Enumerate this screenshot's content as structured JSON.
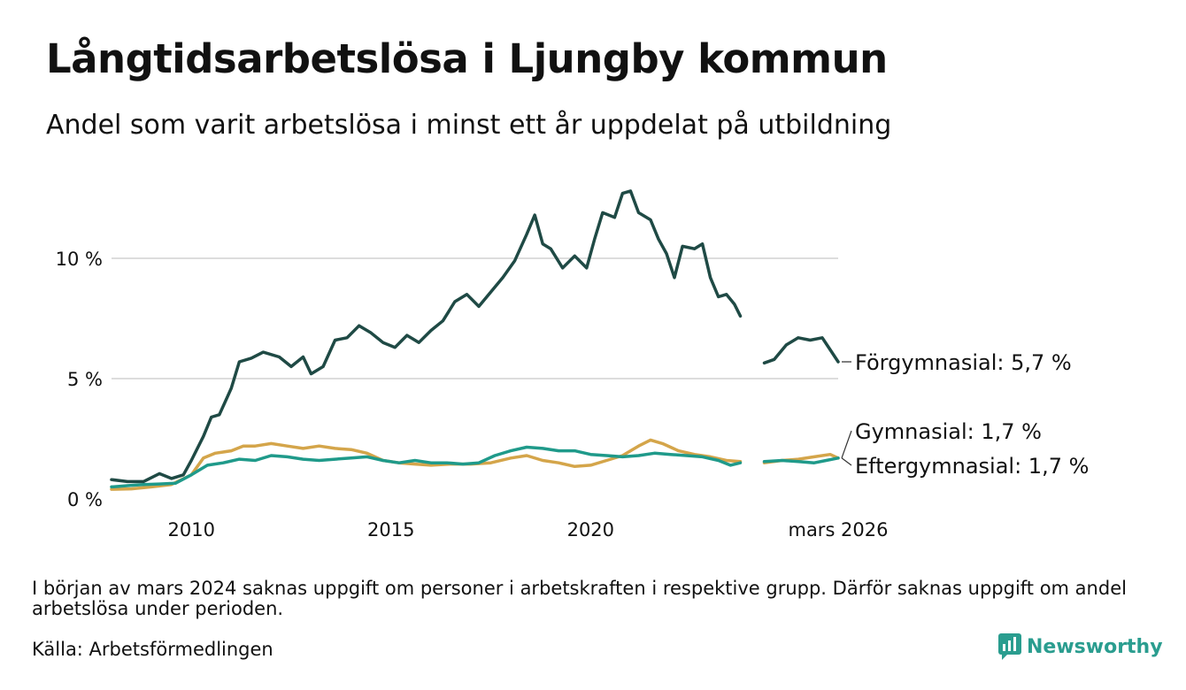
{
  "title": "Långtidsarbetslösa i Ljungby kommun",
  "subtitle": "Andel som varit arbetslösa i minst ett år uppdelat på utbildning",
  "note": "I början av mars 2024 saknas uppgift om personer i arbetskraften i respektive grupp. Därför saknas uppgift om andel arbetslösa under perioden.",
  "source": "Källa: Arbetsförmedlingen",
  "brand": {
    "name": "Newsworthy",
    "icon": "newsworthy-logo-icon"
  },
  "colors": {
    "forgymnasial": "#1f4a45",
    "gymnasial": "#d4a54a",
    "eftergymnasial": "#1f9a8a",
    "grid": "#dddddd",
    "brand": "#2a9d8f"
  },
  "chart_data": {
    "type": "line",
    "y_ticks": [
      0,
      5,
      10
    ],
    "y_tick_labels": [
      "0 %",
      "5 %",
      "10 %"
    ],
    "ylim": [
      0,
      13.2
    ],
    "x_range": [
      2008.0,
      2026.2
    ],
    "x_ticks": [
      2010,
      2015,
      2020,
      2026.2
    ],
    "x_tick_labels": [
      "2010",
      "2015",
      "2020",
      "mars 2026"
    ],
    "gap": [
      2023.75,
      2024.35
    ],
    "series": [
      {
        "key": "forgymnasial",
        "name": "Förgymnasial",
        "end_label": "Förgymnasial: 5,7 %",
        "points": [
          [
            2008.0,
            0.8
          ],
          [
            2008.4,
            0.72
          ],
          [
            2008.8,
            0.72
          ],
          [
            2009.2,
            1.05
          ],
          [
            2009.5,
            0.85
          ],
          [
            2009.8,
            1.0
          ],
          [
            2010.0,
            1.6
          ],
          [
            2010.3,
            2.6
          ],
          [
            2010.5,
            3.4
          ],
          [
            2010.7,
            3.5
          ],
          [
            2011.0,
            4.6
          ],
          [
            2011.2,
            5.7
          ],
          [
            2011.5,
            5.85
          ],
          [
            2011.8,
            6.1
          ],
          [
            2012.2,
            5.9
          ],
          [
            2012.5,
            5.5
          ],
          [
            2012.8,
            5.9
          ],
          [
            2013.0,
            5.2
          ],
          [
            2013.3,
            5.5
          ],
          [
            2013.6,
            6.6
          ],
          [
            2013.9,
            6.7
          ],
          [
            2014.2,
            7.2
          ],
          [
            2014.5,
            6.9
          ],
          [
            2014.8,
            6.5
          ],
          [
            2015.1,
            6.3
          ],
          [
            2015.4,
            6.8
          ],
          [
            2015.7,
            6.5
          ],
          [
            2016.0,
            7.0
          ],
          [
            2016.3,
            7.4
          ],
          [
            2016.6,
            8.2
          ],
          [
            2016.9,
            8.5
          ],
          [
            2017.2,
            8.0
          ],
          [
            2017.5,
            8.6
          ],
          [
            2017.8,
            9.2
          ],
          [
            2018.1,
            9.9
          ],
          [
            2018.4,
            11.0
          ],
          [
            2018.6,
            11.8
          ],
          [
            2018.8,
            10.6
          ],
          [
            2019.0,
            10.4
          ],
          [
            2019.3,
            9.6
          ],
          [
            2019.6,
            10.1
          ],
          [
            2019.9,
            9.6
          ],
          [
            2020.1,
            10.8
          ],
          [
            2020.3,
            11.9
          ],
          [
            2020.6,
            11.7
          ],
          [
            2020.8,
            12.7
          ],
          [
            2021.0,
            12.8
          ],
          [
            2021.2,
            11.9
          ],
          [
            2021.5,
            11.6
          ],
          [
            2021.7,
            10.8
          ],
          [
            2021.9,
            10.2
          ],
          [
            2022.1,
            9.2
          ],
          [
            2022.3,
            10.5
          ],
          [
            2022.6,
            10.4
          ],
          [
            2022.8,
            10.6
          ],
          [
            2023.0,
            9.2
          ],
          [
            2023.2,
            8.4
          ],
          [
            2023.4,
            8.5
          ],
          [
            2023.6,
            8.1
          ],
          [
            2023.75,
            7.6
          ],
          [
            2024.35,
            5.65
          ],
          [
            2024.6,
            5.8
          ],
          [
            2024.9,
            6.4
          ],
          [
            2025.2,
            6.7
          ],
          [
            2025.5,
            6.6
          ],
          [
            2025.8,
            6.7
          ],
          [
            2026.0,
            6.2
          ],
          [
            2026.2,
            5.7
          ]
        ]
      },
      {
        "key": "gymnasial",
        "name": "Gymnasial",
        "end_label": "Gymnasial: 1,7 %",
        "points": [
          [
            2008.0,
            0.4
          ],
          [
            2008.5,
            0.42
          ],
          [
            2009.0,
            0.5
          ],
          [
            2009.5,
            0.6
          ],
          [
            2010.0,
            1.0
          ],
          [
            2010.3,
            1.7
          ],
          [
            2010.6,
            1.9
          ],
          [
            2011.0,
            2.0
          ],
          [
            2011.3,
            2.2
          ],
          [
            2011.6,
            2.2
          ],
          [
            2012.0,
            2.3
          ],
          [
            2012.4,
            2.2
          ],
          [
            2012.8,
            2.1
          ],
          [
            2013.2,
            2.2
          ],
          [
            2013.6,
            2.1
          ],
          [
            2014.0,
            2.05
          ],
          [
            2014.4,
            1.9
          ],
          [
            2014.8,
            1.6
          ],
          [
            2015.2,
            1.5
          ],
          [
            2015.6,
            1.45
          ],
          [
            2016.0,
            1.4
          ],
          [
            2016.5,
            1.45
          ],
          [
            2017.0,
            1.45
          ],
          [
            2017.5,
            1.5
          ],
          [
            2018.0,
            1.7
          ],
          [
            2018.4,
            1.8
          ],
          [
            2018.8,
            1.6
          ],
          [
            2019.2,
            1.5
          ],
          [
            2019.6,
            1.35
          ],
          [
            2020.0,
            1.4
          ],
          [
            2020.4,
            1.6
          ],
          [
            2020.8,
            1.8
          ],
          [
            2021.2,
            2.2
          ],
          [
            2021.5,
            2.45
          ],
          [
            2021.8,
            2.3
          ],
          [
            2022.2,
            2.0
          ],
          [
            2022.6,
            1.85
          ],
          [
            2023.0,
            1.75
          ],
          [
            2023.4,
            1.6
          ],
          [
            2023.75,
            1.55
          ],
          [
            2024.35,
            1.5
          ],
          [
            2024.8,
            1.6
          ],
          [
            2025.2,
            1.65
          ],
          [
            2025.6,
            1.75
          ],
          [
            2026.0,
            1.85
          ],
          [
            2026.2,
            1.7
          ]
        ]
      },
      {
        "key": "eftergymnasial",
        "name": "Eftergymnasial",
        "end_label": "Eftergymnasial: 1,7 %",
        "points": [
          [
            2008.0,
            0.5
          ],
          [
            2008.4,
            0.55
          ],
          [
            2008.8,
            0.6
          ],
          [
            2009.2,
            0.62
          ],
          [
            2009.6,
            0.65
          ],
          [
            2010.0,
            1.0
          ],
          [
            2010.4,
            1.4
          ],
          [
            2010.8,
            1.5
          ],
          [
            2011.2,
            1.65
          ],
          [
            2011.6,
            1.6
          ],
          [
            2012.0,
            1.8
          ],
          [
            2012.4,
            1.75
          ],
          [
            2012.8,
            1.65
          ],
          [
            2013.2,
            1.6
          ],
          [
            2013.6,
            1.65
          ],
          [
            2014.0,
            1.7
          ],
          [
            2014.4,
            1.75
          ],
          [
            2014.8,
            1.6
          ],
          [
            2015.2,
            1.5
          ],
          [
            2015.6,
            1.6
          ],
          [
            2016.0,
            1.5
          ],
          [
            2016.4,
            1.5
          ],
          [
            2016.8,
            1.45
          ],
          [
            2017.2,
            1.5
          ],
          [
            2017.6,
            1.8
          ],
          [
            2018.0,
            2.0
          ],
          [
            2018.4,
            2.15
          ],
          [
            2018.8,
            2.1
          ],
          [
            2019.2,
            2.0
          ],
          [
            2019.6,
            2.0
          ],
          [
            2020.0,
            1.85
          ],
          [
            2020.4,
            1.8
          ],
          [
            2020.8,
            1.75
          ],
          [
            2021.2,
            1.8
          ],
          [
            2021.6,
            1.9
          ],
          [
            2022.0,
            1.85
          ],
          [
            2022.4,
            1.8
          ],
          [
            2022.8,
            1.75
          ],
          [
            2023.2,
            1.6
          ],
          [
            2023.5,
            1.4
          ],
          [
            2023.75,
            1.5
          ],
          [
            2024.35,
            1.55
          ],
          [
            2024.8,
            1.6
          ],
          [
            2025.2,
            1.55
          ],
          [
            2025.6,
            1.5
          ],
          [
            2025.9,
            1.6
          ],
          [
            2026.2,
            1.7
          ]
        ]
      }
    ]
  }
}
